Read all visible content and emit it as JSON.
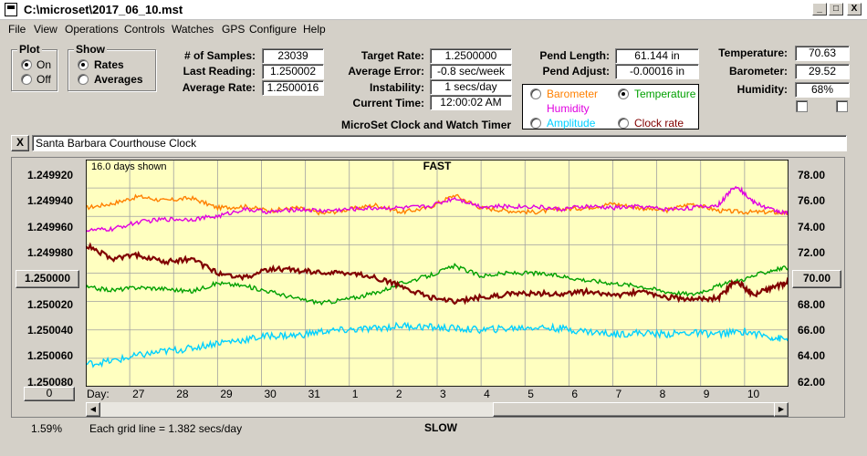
{
  "window": {
    "title": "C:\\microset\\2017_06_10.mst",
    "min_label": "_",
    "max_label": "□",
    "close_label": "X"
  },
  "menu": [
    "File",
    "View",
    "Operations",
    "Controls",
    "Watches",
    "GPS",
    "Configure",
    "Help"
  ],
  "plot_group": {
    "title": "Plot",
    "on": "On",
    "off": "Off",
    "selected": "On"
  },
  "show_group": {
    "title": "Show",
    "rates": "Rates",
    "averages": "Averages",
    "selected": "Rates"
  },
  "stats": {
    "samples_label": "# of Samples:",
    "samples": "23039",
    "last_reading_label": "Last Reading:",
    "last_reading": "1.250002",
    "avg_rate_label": "Average Rate:",
    "avg_rate": "1.2500016",
    "target_rate_label": "Target Rate:",
    "target_rate": "1.2500000",
    "avg_error_label": "Average Error:",
    "avg_error": "-0.8 sec/week",
    "instability_label": "Instability:",
    "instability": "1 secs/day",
    "current_time_label": "Current Time:",
    "current_time": "12:00:02 AM",
    "pend_length_label": "Pend Length:",
    "pend_length": "61.144 in",
    "pend_adjust_label": "Pend Adjust:",
    "pend_adjust": "-0.00016 in",
    "temperature_label": "Temperature:",
    "temperature": "70.63",
    "barometer_label": "Barometer:",
    "barometer": "29.52",
    "humidity_label": "Humidity:",
    "humidity": "68%"
  },
  "app_subtitle": "MicroSet Clock and Watch Timer",
  "overlay_options": [
    {
      "label": "Barometer",
      "color": "#ff8000",
      "selected": false
    },
    {
      "label": "Temperature",
      "color": "#00a000",
      "selected": true
    },
    {
      "label": "Humidity",
      "color": "#e000e0",
      "selected": false
    },
    {
      "label": "Amplitude",
      "color": "#00d0ff",
      "selected": false
    },
    {
      "label": "Clock rate",
      "color": "#800000",
      "selected": false
    }
  ],
  "clock_name": "Santa Barbara Courthouse Clock",
  "clear_label": "X",
  "center_value_left": "1.250000",
  "center_value_right": "70.00",
  "offset_button": "0",
  "footer": {
    "percent": "1.59%",
    "grid_note": "Each grid line = 1.382 secs/day",
    "slow": "SLOW"
  },
  "chart_data": {
    "type": "line",
    "days_shown": "16.0 days shown",
    "top_label": "FAST",
    "bottom_label": "SLOW",
    "x_axis_prefix": "Day:",
    "x_ticks": [
      "27",
      "28",
      "29",
      "30",
      "31",
      "1",
      "2",
      "3",
      "4",
      "5",
      "6",
      "7",
      "8",
      "9",
      "10"
    ],
    "y_left_ticks": [
      "1.249920",
      "1.249940",
      "1.249960",
      "1.249980",
      "1.250000",
      "1.250020",
      "1.250040",
      "1.250060",
      "1.250080"
    ],
    "y_left_range": [
      1.24992,
      1.25008
    ],
    "y_right_ticks": [
      "78.00",
      "76.00",
      "74.00",
      "72.00",
      "70.00",
      "68.00",
      "66.00",
      "64.00",
      "62.00"
    ],
    "y_right_range": [
      62,
      78
    ],
    "series": [
      {
        "name": "Barometer",
        "color": "#ff8000",
        "axis": "right",
        "values": [
          [
            26,
            74.6
          ],
          [
            26.6,
            74.9
          ],
          [
            27.2,
            75.4
          ],
          [
            27.8,
            75.1
          ],
          [
            28.4,
            75.3
          ],
          [
            29,
            74.6
          ],
          [
            29.6,
            74.7
          ],
          [
            30.2,
            74.4
          ],
          [
            30.8,
            74.6
          ],
          [
            31.4,
            74.2
          ],
          [
            32,
            74.5
          ],
          [
            32.6,
            74.8
          ],
          [
            33.2,
            74.3
          ],
          [
            33.8,
            74.6
          ],
          [
            34.4,
            75.5
          ],
          [
            35,
            74.6
          ],
          [
            35.6,
            74.4
          ],
          [
            36.2,
            74.3
          ],
          [
            36.8,
            74.5
          ],
          [
            37.4,
            74.6
          ],
          [
            38,
            74.9
          ],
          [
            38.6,
            74.6
          ],
          [
            39.2,
            74.4
          ],
          [
            39.8,
            74.9
          ],
          [
            40.4,
            74.4
          ],
          [
            41,
            74.3
          ],
          [
            41.6,
            74.3
          ],
          [
            42,
            74.2
          ]
        ]
      },
      {
        "name": "Humidity",
        "color": "#e000e0",
        "axis": "right",
        "values": [
          [
            26,
            73.0
          ],
          [
            26.6,
            73.1
          ],
          [
            27.2,
            73.6
          ],
          [
            27.8,
            73.8
          ],
          [
            28.4,
            73.8
          ],
          [
            29,
            74.0
          ],
          [
            29.6,
            74.5
          ],
          [
            30.2,
            74.3
          ],
          [
            30.8,
            74.5
          ],
          [
            31.4,
            74.4
          ],
          [
            32,
            74.5
          ],
          [
            32.6,
            74.6
          ],
          [
            33.2,
            74.6
          ],
          [
            33.8,
            74.7
          ],
          [
            34.4,
            75.3
          ],
          [
            35,
            74.7
          ],
          [
            35.6,
            74.7
          ],
          [
            36.2,
            74.7
          ],
          [
            36.8,
            74.5
          ],
          [
            37.4,
            74.7
          ],
          [
            38,
            74.6
          ],
          [
            38.6,
            74.7
          ],
          [
            39.2,
            74.5
          ],
          [
            39.8,
            74.6
          ],
          [
            40.4,
            74.8
          ],
          [
            40.8,
            76.2
          ],
          [
            41.2,
            75.0
          ],
          [
            41.6,
            74.5
          ],
          [
            42,
            74.2
          ]
        ]
      },
      {
        "name": "Temperature",
        "color": "#00a000",
        "axis": "right",
        "values": [
          [
            26,
            69.0
          ],
          [
            26.6,
            68.8
          ],
          [
            27.2,
            69.0
          ],
          [
            27.8,
            68.9
          ],
          [
            28.4,
            68.7
          ],
          [
            29,
            69.3
          ],
          [
            29.6,
            69.1
          ],
          [
            30.2,
            68.7
          ],
          [
            30.8,
            68.2
          ],
          [
            31.4,
            67.9
          ],
          [
            32,
            68.2
          ],
          [
            32.6,
            68.6
          ],
          [
            33.2,
            69.3
          ],
          [
            33.8,
            69.8
          ],
          [
            34.4,
            70.5
          ],
          [
            35,
            69.8
          ],
          [
            35.6,
            70.0
          ],
          [
            36.2,
            70.0
          ],
          [
            36.8,
            69.8
          ],
          [
            37.4,
            69.5
          ],
          [
            38,
            69.3
          ],
          [
            38.6,
            69.1
          ],
          [
            39.2,
            68.7
          ],
          [
            39.8,
            68.5
          ],
          [
            40.4,
            69.1
          ],
          [
            41,
            69.6
          ],
          [
            41.6,
            70.2
          ],
          [
            42,
            70.4
          ]
        ]
      },
      {
        "name": "Amplitude",
        "color": "#00d0ff",
        "axis": "right",
        "values": [
          [
            26,
            63.6
          ],
          [
            26.6,
            63.8
          ],
          [
            27.2,
            64.2
          ],
          [
            27.8,
            64.5
          ],
          [
            28.4,
            64.7
          ],
          [
            29,
            65.1
          ],
          [
            29.6,
            65.3
          ],
          [
            30.2,
            65.6
          ],
          [
            30.8,
            65.6
          ],
          [
            31.4,
            65.9
          ],
          [
            32,
            66.0
          ],
          [
            32.6,
            66.1
          ],
          [
            33.2,
            66.3
          ],
          [
            33.8,
            66.2
          ],
          [
            34.4,
            66.1
          ],
          [
            35,
            66.0
          ],
          [
            35.6,
            66.1
          ],
          [
            36.2,
            66.2
          ],
          [
            36.8,
            66.1
          ],
          [
            37.4,
            65.9
          ],
          [
            38,
            65.7
          ],
          [
            38.6,
            65.8
          ],
          [
            39.2,
            65.7
          ],
          [
            39.8,
            65.8
          ],
          [
            40.4,
            65.7
          ],
          [
            41,
            65.9
          ],
          [
            41.6,
            65.5
          ],
          [
            42,
            65.3
          ]
        ]
      },
      {
        "name": "Clock rate",
        "color": "#800000",
        "axis": "left",
        "values": [
          [
            26,
            1.24998
          ],
          [
            26.6,
            1.24999
          ],
          [
            27.2,
            1.249987
          ],
          [
            27.8,
            1.249992
          ],
          [
            28.4,
            1.24999
          ],
          [
            29,
            1.25
          ],
          [
            29.6,
            1.250003
          ],
          [
            30.2,
            1.249997
          ],
          [
            30.8,
            1.249998
          ],
          [
            31.4,
            1.25
          ],
          [
            32,
            1.25
          ],
          [
            32.6,
            1.250003
          ],
          [
            33.2,
            1.250009
          ],
          [
            33.8,
            1.250017
          ],
          [
            34.4,
            1.25002
          ],
          [
            35,
            1.250017
          ],
          [
            35.6,
            1.250015
          ],
          [
            36.2,
            1.250014
          ],
          [
            36.8,
            1.250015
          ],
          [
            37.4,
            1.250013
          ],
          [
            38,
            1.250016
          ],
          [
            38.6,
            1.250013
          ],
          [
            39.2,
            1.250017
          ],
          [
            39.8,
            1.250018
          ],
          [
            40.4,
            1.250018
          ],
          [
            40.8,
            1.250005
          ],
          [
            41.2,
            1.250015
          ],
          [
            41.6,
            1.250011
          ],
          [
            42,
            1.250006
          ]
        ]
      }
    ]
  }
}
